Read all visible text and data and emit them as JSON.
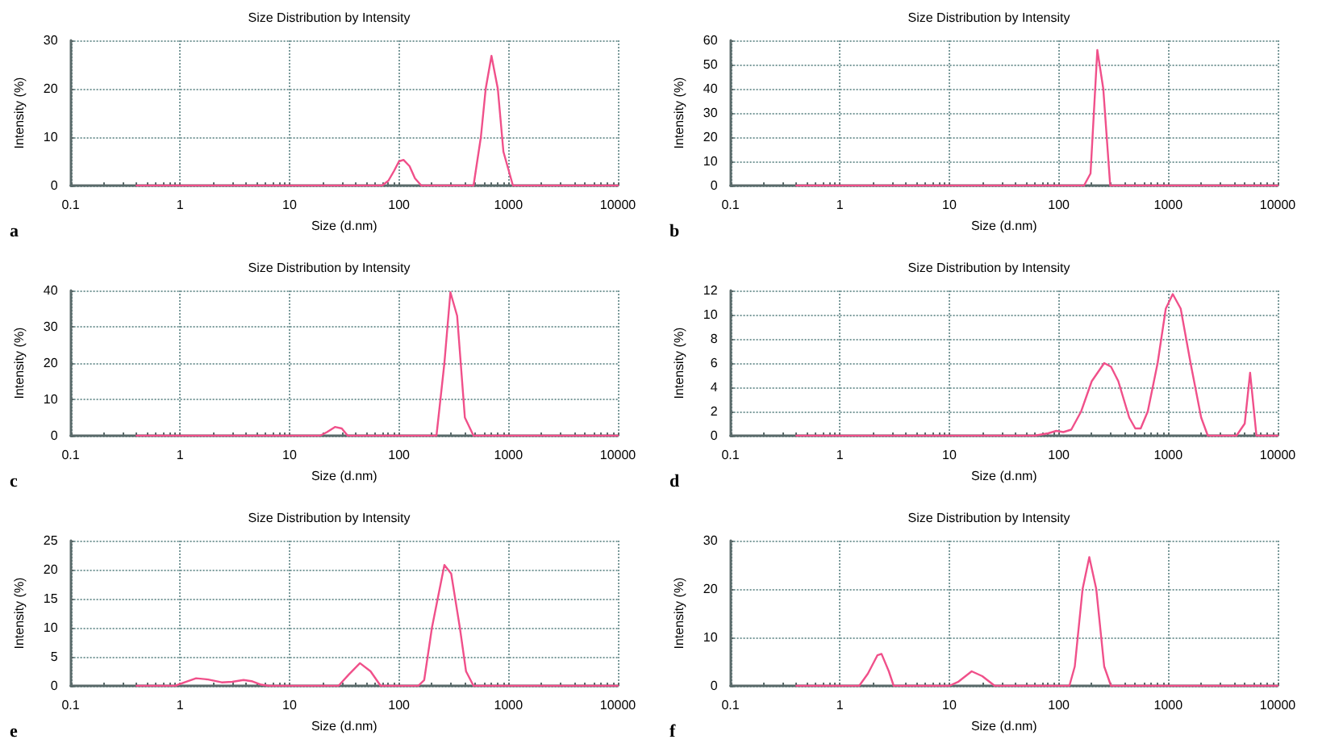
{
  "chart_data": [
    {
      "type": "line",
      "title": "Size Distribution by Intensity",
      "xlabel": "Size (d.nm)",
      "ylabel": "Intensity (%)",
      "annotations": [
        "a"
      ],
      "log": "x",
      "grid": true,
      "marker": "none",
      "line_style": "solid",
      "xlim": [
        0.1,
        10000
      ],
      "xticks": [
        0.1,
        1,
        10,
        100,
        1000,
        10000
      ],
      "ylim": [
        0,
        30
      ],
      "yticks": [
        0,
        10,
        20,
        30
      ],
      "series": [
        {
          "color": "#f0508a",
          "x": [
            0.4,
            70,
            80,
            90,
            100,
            110,
            125,
            140,
            160,
            480,
            560,
            620,
            700,
            800,
            900,
            1100,
            10000
          ],
          "values": [
            0,
            0,
            1,
            3,
            5,
            5.3,
            4,
            1.5,
            0,
            0,
            10,
            20,
            26.8,
            20,
            7,
            0,
            0
          ]
        }
      ]
    },
    {
      "type": "line",
      "title": "Size Distribution by Intensity",
      "xlabel": "Size (d.nm)",
      "ylabel": "Intensity (%)",
      "annotations": [
        "b"
      ],
      "log": "x",
      "grid": true,
      "marker": "none",
      "line_style": "solid",
      "xlim": [
        0.1,
        10000
      ],
      "xticks": [
        0.1,
        1,
        10,
        100,
        1000,
        10000
      ],
      "ylim": [
        0,
        60
      ],
      "yticks": [
        0,
        10,
        20,
        30,
        40,
        50,
        60
      ],
      "series": [
        {
          "color": "#f0508a",
          "x": [
            0.4,
            170,
            195,
            225,
            255,
            295,
            10000
          ],
          "values": [
            0,
            0,
            5,
            56,
            40,
            0,
            0
          ]
        }
      ]
    },
    {
      "type": "line",
      "title": "Size Distribution by Intensity",
      "xlabel": "Size (d.nm)",
      "ylabel": "Intensity (%)",
      "annotations": [
        "c"
      ],
      "log": "x",
      "grid": true,
      "marker": "none",
      "line_style": "solid",
      "xlim": [
        0.1,
        10000
      ],
      "xticks": [
        0.1,
        1,
        10,
        100,
        1000,
        10000
      ],
      "ylim": [
        0,
        40
      ],
      "yticks": [
        0,
        10,
        20,
        30,
        40
      ],
      "series": [
        {
          "color": "#f0508a",
          "x": [
            0.4,
            19,
            22,
            26,
            30,
            34,
            220,
            260,
            295,
            340,
            400,
            480,
            10000
          ],
          "values": [
            0,
            0,
            1,
            2.4,
            2,
            0,
            0,
            20,
            39.5,
            33,
            5,
            0,
            0
          ]
        }
      ]
    },
    {
      "type": "line",
      "title": "Size Distribution by Intensity",
      "xlabel": "Size (d.nm)",
      "ylabel": "Intensity (%)",
      "annotations": [
        "d"
      ],
      "log": "x",
      "grid": true,
      "marker": "none",
      "line_style": "solid",
      "xlim": [
        0.1,
        10000
      ],
      "xticks": [
        0.1,
        1,
        10,
        100,
        1000,
        10000
      ],
      "ylim": [
        0,
        12
      ],
      "yticks": [
        0,
        2,
        4,
        6,
        8,
        10,
        12
      ],
      "series": [
        {
          "color": "#f0508a",
          "x": [
            0.4,
            60,
            80,
            95,
            110,
            130,
            160,
            200,
            260,
            300,
            350,
            440,
            500,
            560,
            650,
            800,
            950,
            1100,
            1300,
            1600,
            2000,
            2300,
            4200,
            5000,
            5600,
            6400,
            10000
          ],
          "values": [
            0,
            0,
            0.2,
            0.4,
            0.3,
            0.5,
            2,
            4.5,
            6,
            5.7,
            4.5,
            1.5,
            0.6,
            0.6,
            2,
            6,
            10.5,
            11.7,
            10.5,
            6,
            1.5,
            0,
            0,
            1,
            5.2,
            0,
            0
          ]
        }
      ]
    },
    {
      "type": "line",
      "title": "Size Distribution by Intensity",
      "xlabel": "Size (d.nm)",
      "ylabel": "Intensity (%)",
      "annotations": [
        "e"
      ],
      "log": "x",
      "grid": true,
      "marker": "none",
      "line_style": "solid",
      "xlim": [
        0.1,
        10000
      ],
      "xticks": [
        0.1,
        1,
        10,
        100,
        1000,
        10000
      ],
      "ylim": [
        0,
        25
      ],
      "yticks": [
        0,
        5,
        10,
        15,
        20,
        25
      ],
      "series": [
        {
          "color": "#f0508a",
          "x": [
            0.4,
            0.9,
            1.1,
            1.4,
            1.8,
            2.4,
            3,
            3.8,
            4.5,
            5.5,
            6.5,
            28,
            35,
            44,
            55,
            68,
            150,
            170,
            200,
            260,
            300,
            360,
            410,
            480,
            10000
          ],
          "values": [
            0,
            0,
            0.6,
            1.3,
            1.1,
            0.6,
            0.7,
            1,
            0.8,
            0.2,
            0,
            0,
            2,
            3.9,
            2.5,
            0,
            0,
            1,
            10,
            20.8,
            19.3,
            10,
            2.5,
            0,
            0
          ]
        }
      ]
    },
    {
      "type": "line",
      "title": "Size Distribution by Intensity",
      "xlabel": "Size (d.nm)",
      "ylabel": "Intensity (%)",
      "annotations": [
        "f"
      ],
      "log": "x",
      "grid": true,
      "marker": "none",
      "line_style": "solid",
      "xlim": [
        0.1,
        10000
      ],
      "xticks": [
        0.1,
        1,
        10,
        100,
        1000,
        10000
      ],
      "ylim": [
        0,
        30
      ],
      "yticks": [
        0,
        10,
        20,
        30
      ],
      "series": [
        {
          "color": "#f0508a",
          "x": [
            0.4,
            1.5,
            1.8,
            2.2,
            2.4,
            2.8,
            3.1,
            10,
            12,
            16,
            20,
            26,
            125,
            140,
            165,
            190,
            220,
            260,
            300,
            10000
          ],
          "values": [
            0,
            0,
            2.5,
            6.3,
            6.6,
            3,
            0,
            0,
            0.8,
            3,
            2,
            0,
            0,
            4,
            20,
            26.6,
            20,
            4,
            0,
            0
          ]
        }
      ]
    }
  ]
}
